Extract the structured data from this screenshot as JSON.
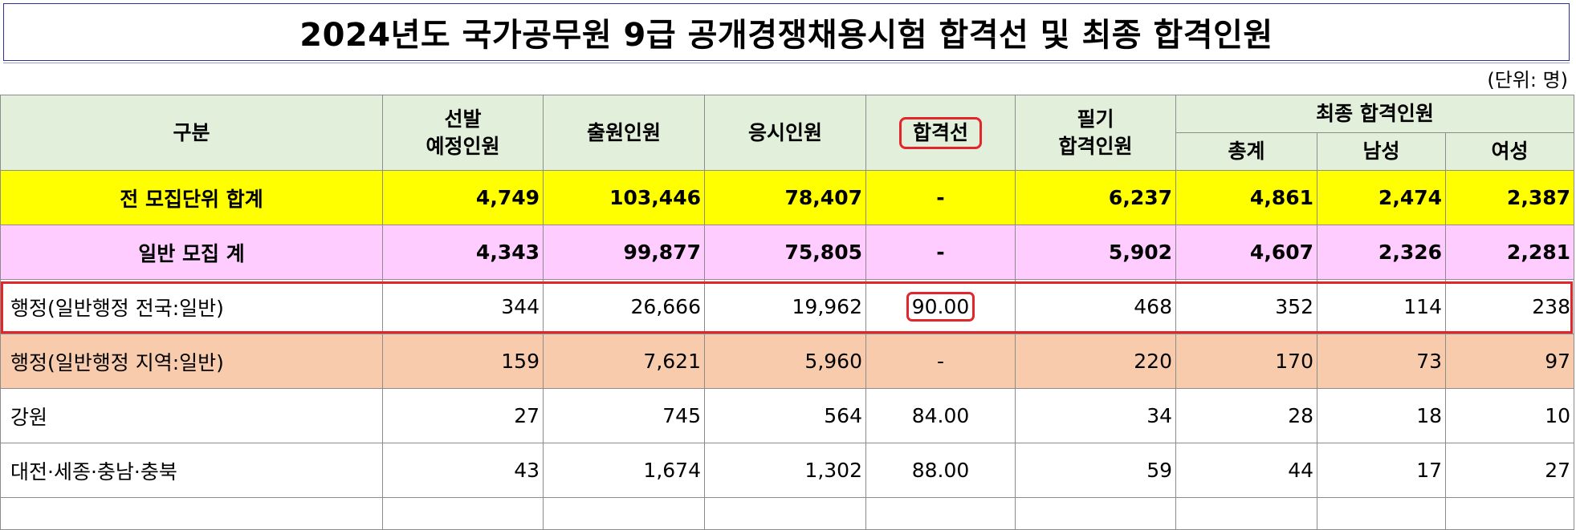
{
  "title": "2024년도 국가공무원 9급 공개경쟁채용시험 합격선 및 최종 합격인원",
  "unit": "(단위: 명)",
  "headers": {
    "category": "구분",
    "quota_line1": "선발",
    "quota_line2": "예정인원",
    "applicants": "출원인원",
    "examinees": "응시인원",
    "cutoff": "합격선",
    "written_line1": "필기",
    "written_line2": "합격인원",
    "final_group": "최종 합격인원",
    "final_total": "총계",
    "final_male": "남성",
    "final_female": "여성"
  },
  "rows": [
    {
      "label": "전 모집단위 합계",
      "quota": "4,749",
      "applicants": "103,446",
      "examinees": "78,407",
      "cutoff": "-",
      "written": "6,237",
      "total": "4,861",
      "male": "2,474",
      "female": "2,387"
    },
    {
      "label": "일반 모집 계",
      "quota": "4,343",
      "applicants": "99,877",
      "examinees": "75,805",
      "cutoff": "-",
      "written": "5,902",
      "total": "4,607",
      "male": "2,326",
      "female": "2,281"
    },
    {
      "label": "행정(일반행정 전국:일반)",
      "quota": "344",
      "applicants": "26,666",
      "examinees": "19,962",
      "cutoff": "90.00",
      "written": "468",
      "total": "352",
      "male": "114",
      "female": "238"
    },
    {
      "label": "행정(일반행정 지역:일반)",
      "quota": "159",
      "applicants": "7,621",
      "examinees": "5,960",
      "cutoff": "-",
      "written": "220",
      "total": "170",
      "male": "73",
      "female": "97"
    },
    {
      "label": "강원",
      "quota": "27",
      "applicants": "745",
      "examinees": "564",
      "cutoff": "84.00",
      "written": "34",
      "total": "28",
      "male": "18",
      "female": "10"
    },
    {
      "label": "대전·세종·충남·충북",
      "quota": "43",
      "applicants": "1,674",
      "examinees": "1,302",
      "cutoff": "88.00",
      "written": "59",
      "total": "44",
      "male": "17",
      "female": "27"
    }
  ],
  "colors": {
    "total_row": "#ffff00",
    "general_row": "#ffccff",
    "regional_row": "#f8cbad",
    "header": "#e2efda",
    "highlight": "#e3262b"
  }
}
